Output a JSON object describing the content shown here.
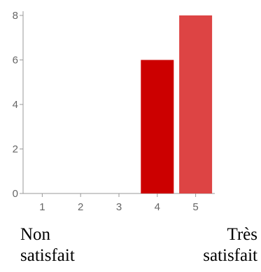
{
  "chart_data": {
    "type": "bar",
    "categories": [
      "1",
      "2",
      "3",
      "4",
      "5"
    ],
    "values": [
      0,
      0,
      0,
      6,
      8
    ],
    "bar_colors": [
      "#cc0000",
      "#cc0000",
      "#cc0000",
      "#cc0000",
      "#dd4444"
    ],
    "ylim": [
      0,
      8
    ],
    "yticks": [
      "0",
      "2",
      "4",
      "6",
      "8"
    ],
    "title": "",
    "xlabel": "",
    "ylabel": "",
    "grid": false,
    "axis_color": "#999999"
  },
  "scale_labels": {
    "low_line1": "Non",
    "low_line2": "satisfait",
    "high_line1": "Très",
    "high_line2": "satisfait"
  }
}
